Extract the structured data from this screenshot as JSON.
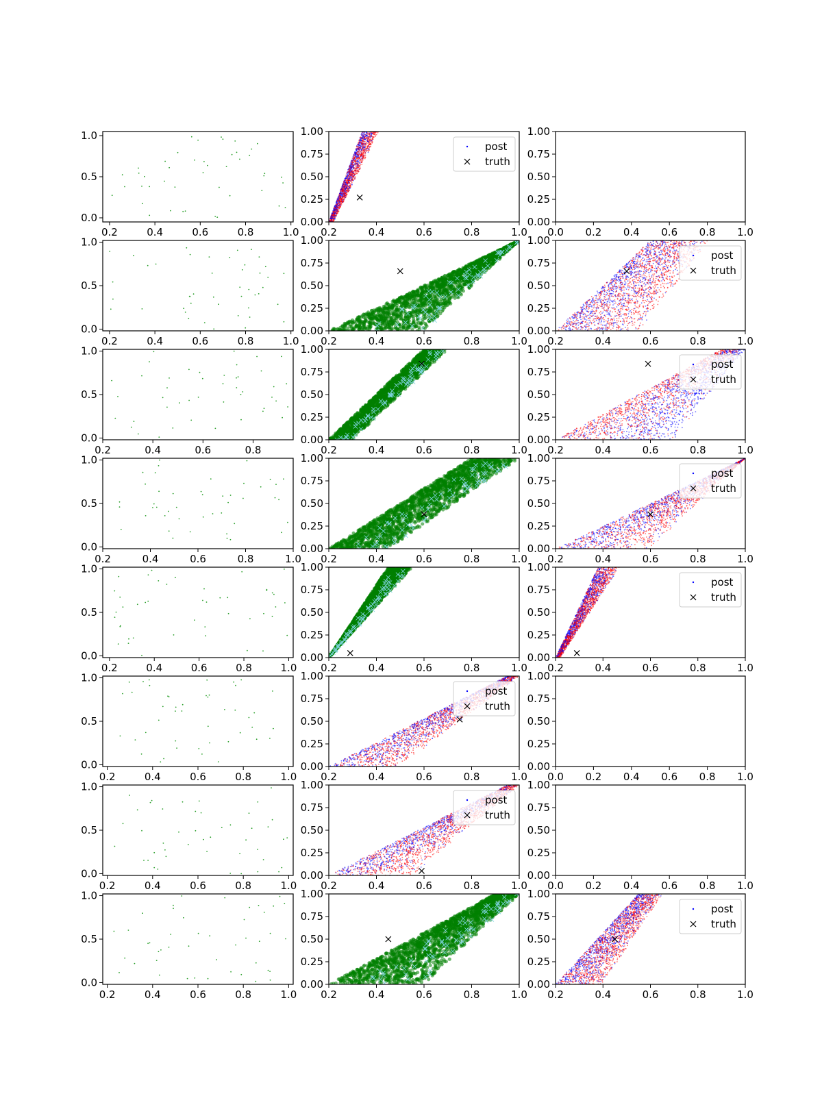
{
  "figure": {
    "rows": 8,
    "cols": 3,
    "legend_labels": {
      "post": "post",
      "truth": "truth"
    }
  },
  "colors": {
    "green_scatter": "#2ca02c",
    "dark_green": "#008000",
    "blue": "#0000ff",
    "red": "#ff0000",
    "cyan_marker": "#7fd4e0",
    "truth_marker": "#000000"
  },
  "chart_data": [
    {
      "row": 0,
      "col": 0,
      "type": "scatter",
      "style": "sparse",
      "n": 45,
      "xlim": [
        0.17,
        1.01
      ],
      "ylim": [
        -0.05,
        1.05
      ],
      "xticks": [
        0.2,
        0.4,
        0.6,
        0.8,
        1.0
      ],
      "xticklabels": [
        "0.2",
        "0.4",
        "0.6",
        "0.8",
        "1.0"
      ],
      "yticks": [
        0,
        0.5,
        1
      ],
      "yticklabels": [
        "0.0",
        "0.5",
        "1.0"
      ],
      "legend": false,
      "truth": null
    },
    {
      "row": 0,
      "col": 1,
      "type": "scatter",
      "style": "bluered",
      "n": 1800,
      "band": [
        0.2,
        0.22,
        0.34,
        0.41
      ],
      "xlim": [
        0.2,
        1.0
      ],
      "ylim": [
        0,
        1
      ],
      "xticks": [
        0.2,
        0.4,
        0.6,
        0.8,
        1.0
      ],
      "xticklabels": [
        "0.2",
        "0.4",
        "0.6",
        "0.8",
        "1.0"
      ],
      "yticks": [
        0,
        0.25,
        0.5,
        0.75,
        1
      ],
      "yticklabels": [
        "0.00",
        "0.25",
        "0.50",
        "0.75",
        "1.00"
      ],
      "legend": true,
      "legend_position": "top-right",
      "truth": [
        0.33,
        0.27
      ]
    },
    {
      "row": 0,
      "col": 2,
      "type": "empty",
      "xlim": [
        0,
        1
      ],
      "ylim": [
        0,
        1
      ],
      "xticks": [
        0,
        0.2,
        0.4,
        0.6,
        0.8,
        1.0
      ],
      "xticklabels": [
        "0.0",
        "0.2",
        "0.4",
        "0.6",
        "0.8",
        "1.0"
      ],
      "yticks": [
        0,
        0.25,
        0.5,
        0.75,
        1
      ],
      "yticklabels": [
        "0.00",
        "0.25",
        "0.50",
        "0.75",
        "1.00"
      ],
      "legend": false,
      "truth": null
    },
    {
      "row": 1,
      "col": 0,
      "type": "scatter",
      "style": "sparse",
      "n": 45,
      "xlim": [
        0.17,
        1.01
      ],
      "ylim": [
        -0.02,
        1.02
      ],
      "xticks": [
        0.2,
        0.4,
        0.6,
        0.8,
        1.0
      ],
      "xticklabels": [
        "0.2",
        "0.4",
        "0.6",
        "0.8",
        "1.0"
      ],
      "yticks": [
        0,
        0.5,
        1
      ],
      "yticklabels": [
        "0.0",
        "0.5",
        "1.0"
      ],
      "legend": false,
      "truth": null
    },
    {
      "row": 1,
      "col": 1,
      "type": "scatter",
      "style": "green",
      "n": 2000,
      "band": [
        0.2,
        0.6,
        1.0,
        1.0
      ],
      "xlim": [
        0.2,
        1.0
      ],
      "ylim": [
        0,
        1
      ],
      "xticks": [
        0.2,
        0.4,
        0.6,
        0.8,
        1.0
      ],
      "xticklabels": [
        "0.2",
        "0.4",
        "0.6",
        "0.8",
        "1.0"
      ],
      "yticks": [
        0,
        0.25,
        0.5,
        0.75,
        1
      ],
      "yticklabels": [
        "0.00",
        "0.25",
        "0.50",
        "0.75",
        "1.00"
      ],
      "legend": false,
      "truth": [
        0.5,
        0.66
      ]
    },
    {
      "row": 1,
      "col": 2,
      "type": "scatter",
      "style": "bluered",
      "n": 2200,
      "band": [
        0.2,
        0.55,
        0.6,
        0.85
      ],
      "xlim": [
        0.2,
        1.0
      ],
      "ylim": [
        0,
        1
      ],
      "xticks": [
        0.2,
        0.4,
        0.6,
        0.8,
        1.0
      ],
      "xticklabels": [
        "0.2",
        "0.4",
        "0.6",
        "0.8",
        "1.0"
      ],
      "yticks": [
        0,
        0.25,
        0.5,
        0.75,
        1
      ],
      "yticklabels": [
        "0.00",
        "0.25",
        "0.50",
        "0.75",
        "1.00"
      ],
      "legend": true,
      "legend_position": "top-right",
      "truth": [
        0.5,
        0.66
      ]
    },
    {
      "row": 2,
      "col": 0,
      "type": "scatter",
      "style": "sparse",
      "n": 45,
      "xlim": [
        0.2,
        0.96
      ],
      "ylim": [
        -0.02,
        1.02
      ],
      "xticks": [
        0.2,
        0.4,
        0.6,
        0.8
      ],
      "xticklabels": [
        "0.2",
        "0.4",
        "0.6",
        "0.8"
      ],
      "yticks": [
        0,
        0.5,
        1
      ],
      "yticklabels": [
        "0.0",
        "0.5",
        "1.0"
      ],
      "legend": false,
      "truth": null
    },
    {
      "row": 2,
      "col": 1,
      "type": "scatter",
      "style": "green",
      "n": 1900,
      "band": [
        0.2,
        0.3,
        0.6,
        0.7
      ],
      "xlim": [
        0.2,
        1.0
      ],
      "ylim": [
        0,
        1
      ],
      "xticks": [
        0.2,
        0.4,
        0.6,
        0.8,
        1.0
      ],
      "xticklabels": [
        "0.2",
        "0.4",
        "0.6",
        "0.8",
        "1.0"
      ],
      "yticks": [
        0,
        0.25,
        0.5,
        0.75,
        1
      ],
      "yticklabels": [
        "0.00",
        "0.25",
        "0.50",
        "0.75",
        "1.00"
      ],
      "legend": false,
      "truth": [
        0.59,
        0.84
      ]
    },
    {
      "row": 2,
      "col": 2,
      "type": "scatter",
      "style": "bluered",
      "n": 2200,
      "band": [
        0.2,
        0.7,
        0.9,
        1.0
      ],
      "xlim": [
        0.2,
        1.0
      ],
      "ylim": [
        0,
        1
      ],
      "xticks": [
        0.2,
        0.4,
        0.6,
        0.8,
        1.0
      ],
      "xticklabels": [
        "0.2",
        "0.4",
        "0.6",
        "0.8",
        "1.0"
      ],
      "yticks": [
        0,
        0.25,
        0.5,
        0.75,
        1
      ],
      "yticklabels": [
        "0.00",
        "0.25",
        "0.50",
        "0.75",
        "1.00"
      ],
      "legend": true,
      "legend_position": "top-right",
      "truth": [
        0.59,
        0.84
      ]
    },
    {
      "row": 3,
      "col": 0,
      "type": "scatter",
      "style": "sparse",
      "n": 45,
      "xlim": [
        0.2,
        1.0
      ],
      "ylim": [
        -0.02,
        1.02
      ],
      "xticks": [
        0.2,
        0.4,
        0.6,
        0.8,
        1.0
      ],
      "xticklabels": [
        "0.2",
        "0.4",
        "0.6",
        "0.8",
        "1.0"
      ],
      "yticks": [
        0,
        0.5,
        1
      ],
      "yticklabels": [
        "0.0",
        "0.5",
        "1.0"
      ],
      "legend": false,
      "truth": null
    },
    {
      "row": 3,
      "col": 1,
      "type": "scatter",
      "style": "green",
      "n": 2000,
      "band": [
        0.2,
        0.45,
        0.8,
        1.0
      ],
      "xlim": [
        0.2,
        1.0
      ],
      "ylim": [
        0,
        1
      ],
      "xticks": [
        0.2,
        0.4,
        0.6,
        0.8,
        1.0
      ],
      "xticklabels": [
        "0.2",
        "0.4",
        "0.6",
        "0.8",
        "1.0"
      ],
      "yticks": [
        0,
        0.25,
        0.5,
        0.75,
        1
      ],
      "yticklabels": [
        "0.00",
        "0.25",
        "0.50",
        "0.75",
        "1.00"
      ],
      "legend": false,
      "truth": [
        0.6,
        0.38
      ]
    },
    {
      "row": 3,
      "col": 2,
      "type": "scatter",
      "style": "bluered",
      "n": 2200,
      "band": [
        0.2,
        0.6,
        1.0,
        1.0
      ],
      "xlim": [
        0.2,
        1.0
      ],
      "ylim": [
        0,
        1
      ],
      "xticks": [
        0.2,
        0.4,
        0.6,
        0.8,
        1.0
      ],
      "xticklabels": [
        "0.2",
        "0.4",
        "0.6",
        "0.8",
        "1.0"
      ],
      "yticks": [
        0,
        0.25,
        0.5,
        0.75,
        1
      ],
      "yticklabels": [
        "0.00",
        "0.25",
        "0.50",
        "0.75",
        "1.00"
      ],
      "legend": true,
      "legend_position": "top-right",
      "truth": [
        0.6,
        0.38
      ]
    },
    {
      "row": 4,
      "col": 0,
      "type": "scatter",
      "style": "sparse",
      "n": 45,
      "xlim": [
        0.17,
        1.02
      ],
      "ylim": [
        -0.02,
        1.02
      ],
      "xticks": [
        0.2,
        0.4,
        0.6,
        0.8,
        1.0
      ],
      "xticklabels": [
        "0.2",
        "0.4",
        "0.6",
        "0.8",
        "1.0"
      ],
      "yticks": [
        0,
        0.5,
        1
      ],
      "yticklabels": [
        "0.0",
        "0.5",
        "1.0"
      ],
      "legend": false,
      "truth": null
    },
    {
      "row": 4,
      "col": 1,
      "type": "scatter",
      "style": "green",
      "n": 2200,
      "band": [
        0.2,
        0.2,
        0.45,
        0.55
      ],
      "xlim": [
        0.2,
        1.0
      ],
      "ylim": [
        0,
        1
      ],
      "xticks": [
        0.2,
        0.4,
        0.6,
        0.8,
        1.0
      ],
      "xticklabels": [
        "0.2",
        "0.4",
        "0.6",
        "0.8",
        "1.0"
      ],
      "yticks": [
        0,
        0.25,
        0.5,
        0.75,
        1
      ],
      "yticklabels": [
        "0.00",
        "0.25",
        "0.50",
        "0.75",
        "1.00"
      ],
      "legend": false,
      "truth": [
        0.29,
        0.05
      ]
    },
    {
      "row": 4,
      "col": 2,
      "type": "scatter",
      "style": "bluered",
      "n": 2000,
      "band": [
        0.2,
        0.22,
        0.38,
        0.47
      ],
      "xlim": [
        0.2,
        1.0
      ],
      "ylim": [
        0,
        1
      ],
      "xticks": [
        0.2,
        0.4,
        0.6,
        0.8,
        1.0
      ],
      "xticklabels": [
        "0.2",
        "0.4",
        "0.6",
        "0.8",
        "1.0"
      ],
      "yticks": [
        0,
        0.25,
        0.5,
        0.75,
        1
      ],
      "yticklabels": [
        "0.00",
        "0.25",
        "0.50",
        "0.75",
        "1.00"
      ],
      "legend": true,
      "legend_position": "top-right",
      "truth": [
        0.29,
        0.05
      ]
    },
    {
      "row": 5,
      "col": 0,
      "type": "scatter",
      "style": "sparse",
      "n": 45,
      "xlim": [
        0.18,
        1.02
      ],
      "ylim": [
        -0.02,
        1.02
      ],
      "xticks": [
        0.2,
        0.4,
        0.6,
        0.8,
        1.0
      ],
      "xticklabels": [
        "0.2",
        "0.4",
        "0.6",
        "0.8",
        "1.0"
      ],
      "yticks": [
        0,
        0.5,
        1
      ],
      "yticklabels": [
        "0.0",
        "0.5",
        "1.0"
      ],
      "legend": false,
      "truth": null
    },
    {
      "row": 5,
      "col": 1,
      "type": "scatter",
      "style": "bluered",
      "n": 2200,
      "band": [
        0.2,
        0.5,
        0.95,
        1.0
      ],
      "xlim": [
        0.2,
        1.0
      ],
      "ylim": [
        0,
        1
      ],
      "xticks": [
        0.2,
        0.4,
        0.6,
        0.8,
        1.0
      ],
      "xticklabels": [
        "0.2",
        "0.4",
        "0.6",
        "0.8",
        "1.0"
      ],
      "yticks": [
        0,
        0.25,
        0.5,
        0.75,
        1
      ],
      "yticklabels": [
        "0.00",
        "0.25",
        "0.50",
        "0.75",
        "1.00"
      ],
      "legend": true,
      "legend_position": "top-right",
      "truth": [
        0.75,
        0.52
      ]
    },
    {
      "row": 5,
      "col": 2,
      "type": "empty",
      "xlim": [
        0,
        1
      ],
      "ylim": [
        0,
        1
      ],
      "xticks": [
        0,
        0.2,
        0.4,
        0.6,
        0.8,
        1.0
      ],
      "xticklabels": [
        "0.0",
        "0.2",
        "0.4",
        "0.6",
        "0.8",
        "1.0"
      ],
      "yticks": [
        0,
        0.25,
        0.5,
        0.75,
        1
      ],
      "yticklabels": [
        "0.00",
        "0.25",
        "0.50",
        "0.75",
        "1.00"
      ],
      "legend": false,
      "truth": null
    },
    {
      "row": 6,
      "col": 0,
      "type": "scatter",
      "style": "sparse",
      "n": 45,
      "xlim": [
        0.18,
        1.02
      ],
      "ylim": [
        -0.02,
        1.02
      ],
      "xticks": [
        0.2,
        0.4,
        0.6,
        0.8,
        1.0
      ],
      "xticklabels": [
        "0.2",
        "0.4",
        "0.6",
        "0.8",
        "1.0"
      ],
      "yticks": [
        0,
        0.5,
        1
      ],
      "yticklabels": [
        "0.0",
        "0.5",
        "1.0"
      ],
      "legend": false,
      "truth": null
    },
    {
      "row": 6,
      "col": 1,
      "type": "scatter",
      "style": "bluered",
      "n": 2200,
      "band": [
        0.2,
        0.55,
        0.95,
        1.0
      ],
      "xlim": [
        0.2,
        1.0
      ],
      "ylim": [
        0,
        1
      ],
      "xticks": [
        0.2,
        0.4,
        0.6,
        0.8,
        1.0
      ],
      "xticklabels": [
        "0.2",
        "0.4",
        "0.6",
        "0.8",
        "1.0"
      ],
      "yticks": [
        0,
        0.25,
        0.5,
        0.75,
        1
      ],
      "yticklabels": [
        "0.00",
        "0.25",
        "0.50",
        "0.75",
        "1.00"
      ],
      "legend": true,
      "legend_position": "top-right",
      "truth": [
        0.59,
        0.05
      ]
    },
    {
      "row": 6,
      "col": 2,
      "type": "empty",
      "xlim": [
        0,
        1
      ],
      "ylim": [
        0,
        1
      ],
      "xticks": [
        0,
        0.2,
        0.4,
        0.6,
        0.8,
        1.0
      ],
      "xticklabels": [
        "0.0",
        "0.2",
        "0.4",
        "0.6",
        "0.8",
        "1.0"
      ],
      "yticks": [
        0,
        0.25,
        0.5,
        0.75,
        1
      ],
      "yticklabels": [
        "0.00",
        "0.25",
        "0.50",
        "0.75",
        "1.00"
      ],
      "legend": false,
      "truth": null
    },
    {
      "row": 7,
      "col": 0,
      "type": "scatter",
      "style": "sparse",
      "n": 45,
      "xlim": [
        0.18,
        1.02
      ],
      "ylim": [
        -0.02,
        1.02
      ],
      "xticks": [
        0.2,
        0.4,
        0.6,
        0.8,
        1.0
      ],
      "xticklabels": [
        "0.2",
        "0.4",
        "0.6",
        "0.8",
        "1.0"
      ],
      "yticks": [
        0,
        0.5,
        1
      ],
      "yticklabels": [
        "0.0",
        "0.5",
        "1.0"
      ],
      "legend": false,
      "truth": null
    },
    {
      "row": 7,
      "col": 1,
      "type": "scatter",
      "style": "green",
      "n": 2000,
      "band": [
        0.2,
        0.6,
        0.9,
        1.0
      ],
      "xlim": [
        0.2,
        1.0
      ],
      "ylim": [
        0,
        1
      ],
      "xticks": [
        0.2,
        0.4,
        0.6,
        0.8,
        1.0
      ],
      "xticklabels": [
        "0.2",
        "0.4",
        "0.6",
        "0.8",
        "1.0"
      ],
      "yticks": [
        0,
        0.25,
        0.5,
        0.75,
        1
      ],
      "yticklabels": [
        "0.00",
        "0.25",
        "0.50",
        "0.75",
        "1.00"
      ],
      "legend": false,
      "truth": [
        0.45,
        0.5
      ]
    },
    {
      "row": 7,
      "col": 2,
      "type": "scatter",
      "style": "bluered",
      "n": 2200,
      "band": [
        0.2,
        0.4,
        0.55,
        0.65
      ],
      "xlim": [
        0.2,
        1.0
      ],
      "ylim": [
        0,
        1
      ],
      "xticks": [
        0.2,
        0.4,
        0.6,
        0.8,
        1.0
      ],
      "xticklabels": [
        "0.2",
        "0.4",
        "0.6",
        "0.8",
        "1.0"
      ],
      "yticks": [
        0,
        0.25,
        0.5,
        0.75,
        1
      ],
      "yticklabels": [
        "0.00",
        "0.25",
        "0.50",
        "0.75",
        "1.00"
      ],
      "legend": true,
      "legend_position": "top-right",
      "truth": [
        0.45,
        0.5
      ]
    }
  ]
}
